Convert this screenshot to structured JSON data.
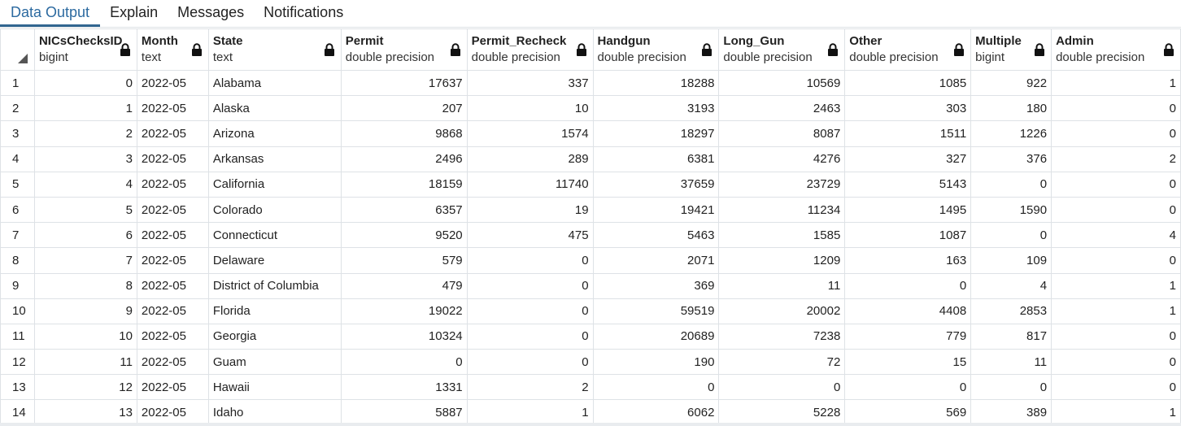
{
  "tabs": [
    {
      "label": "Data Output",
      "active": true
    },
    {
      "label": "Explain",
      "active": false
    },
    {
      "label": "Messages",
      "active": false
    },
    {
      "label": "Notifications",
      "active": false
    }
  ],
  "columns": [
    {
      "name": "NICsChecksID",
      "type": "bigint",
      "align": "num"
    },
    {
      "name": "Month",
      "type": "text",
      "align": "txt"
    },
    {
      "name": "State",
      "type": "text",
      "align": "txt"
    },
    {
      "name": "Permit",
      "type": "double precision",
      "align": "num"
    },
    {
      "name": "Permit_Recheck",
      "type": "double precision",
      "align": "num"
    },
    {
      "name": "Handgun",
      "type": "double precision",
      "align": "num"
    },
    {
      "name": "Long_Gun",
      "type": "double precision",
      "align": "num"
    },
    {
      "name": "Other",
      "type": "double precision",
      "align": "num"
    },
    {
      "name": "Multiple",
      "type": "bigint",
      "align": "num"
    },
    {
      "name": "Admin",
      "type": "double precision",
      "align": "num"
    }
  ],
  "rows": [
    [
      "1",
      "0",
      "2022-05",
      "Alabama",
      "17637",
      "337",
      "18288",
      "10569",
      "1085",
      "922",
      "1"
    ],
    [
      "2",
      "1",
      "2022-05",
      "Alaska",
      "207",
      "10",
      "3193",
      "2463",
      "303",
      "180",
      "0"
    ],
    [
      "3",
      "2",
      "2022-05",
      "Arizona",
      "9868",
      "1574",
      "18297",
      "8087",
      "1511",
      "1226",
      "0"
    ],
    [
      "4",
      "3",
      "2022-05",
      "Arkansas",
      "2496",
      "289",
      "6381",
      "4276",
      "327",
      "376",
      "2"
    ],
    [
      "5",
      "4",
      "2022-05",
      "California",
      "18159",
      "11740",
      "37659",
      "23729",
      "5143",
      "0",
      "0"
    ],
    [
      "6",
      "5",
      "2022-05",
      "Colorado",
      "6357",
      "19",
      "19421",
      "11234",
      "1495",
      "1590",
      "0"
    ],
    [
      "7",
      "6",
      "2022-05",
      "Connecticut",
      "9520",
      "475",
      "5463",
      "1585",
      "1087",
      "0",
      "4"
    ],
    [
      "8",
      "7",
      "2022-05",
      "Delaware",
      "579",
      "0",
      "2071",
      "1209",
      "163",
      "109",
      "0"
    ],
    [
      "9",
      "8",
      "2022-05",
      "District of Columbia",
      "479",
      "0",
      "369",
      "11",
      "0",
      "4",
      "1"
    ],
    [
      "10",
      "9",
      "2022-05",
      "Florida",
      "19022",
      "0",
      "59519",
      "20002",
      "4408",
      "2853",
      "1"
    ],
    [
      "11",
      "10",
      "2022-05",
      "Georgia",
      "10324",
      "0",
      "20689",
      "7238",
      "779",
      "817",
      "0"
    ],
    [
      "12",
      "11",
      "2022-05",
      "Guam",
      "0",
      "0",
      "190",
      "72",
      "15",
      "11",
      "0"
    ],
    [
      "13",
      "12",
      "2022-05",
      "Hawaii",
      "1331",
      "2",
      "0",
      "0",
      "0",
      "0",
      "0"
    ],
    [
      "14",
      "13",
      "2022-05",
      "Idaho",
      "5887",
      "1",
      "6062",
      "5228",
      "569",
      "389",
      "1"
    ]
  ]
}
